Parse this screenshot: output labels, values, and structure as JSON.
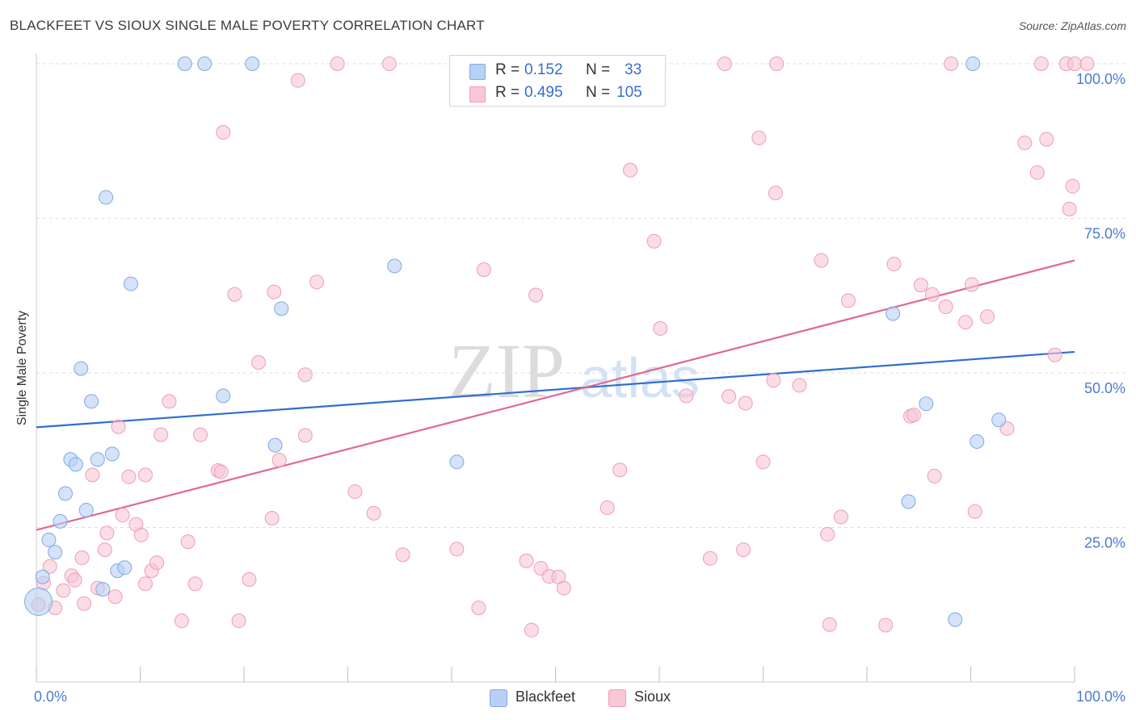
{
  "header": {
    "title": "BLACKFEET VS SIOUX SINGLE MALE POVERTY CORRELATION CHART",
    "source": "Source: ZipAtlas.com"
  },
  "watermark": {
    "zip": "ZIP",
    "atlas": "atlas"
  },
  "stats_box": {
    "rows": [
      {
        "r_label": "R =",
        "r_value": "0.152",
        "n_label": "N =",
        "n_value": "33",
        "color": "#b8d0f4"
      },
      {
        "r_label": "R =",
        "r_value": "0.495",
        "n_label": "N =",
        "n_value": "105",
        "color": "#f9c7d5"
      }
    ]
  },
  "legend": {
    "items": [
      "Blackfeet",
      "Sioux"
    ]
  },
  "chart_data": {
    "type": "scatter",
    "title": "BLACKFEET VS SIOUX SINGLE MALE POVERTY CORRELATION CHART",
    "xlabel": "",
    "ylabel": "Single Male Poverty",
    "xlim": [
      0,
      100
    ],
    "ylim": [
      0,
      100
    ],
    "x_tick_labels": [
      "0.0%",
      "100.0%"
    ],
    "y_tick_labels": [
      "25.0%",
      "50.0%",
      "75.0%",
      "100.0%"
    ],
    "y_ticks": [
      25,
      50,
      75,
      100
    ],
    "grid": true,
    "legend_position": "bottom-center",
    "series": [
      {
        "name": "Blackfeet",
        "color": "#7fa9e6",
        "fill": "#b8d0f4",
        "line_color": "#2f6ecf",
        "trend": [
          [
            0,
            41.2
          ],
          [
            100,
            53.4
          ]
        ],
        "points": [
          [
            0.2,
            13.0
          ],
          [
            0.6,
            17.0
          ],
          [
            1.2,
            23.0
          ],
          [
            1.8,
            21.0
          ],
          [
            2.3,
            26.0
          ],
          [
            2.8,
            30.5
          ],
          [
            3.3,
            36.0
          ],
          [
            3.8,
            35.2
          ],
          [
            4.3,
            50.7
          ],
          [
            4.8,
            27.8
          ],
          [
            5.3,
            45.4
          ],
          [
            5.9,
            36.0
          ],
          [
            6.4,
            15.0
          ],
          [
            6.7,
            78.4
          ],
          [
            7.3,
            36.9
          ],
          [
            7.8,
            18.0
          ],
          [
            8.5,
            18.5
          ],
          [
            9.1,
            64.4
          ],
          [
            14.3,
            100.0
          ],
          [
            16.2,
            100.0
          ],
          [
            18.0,
            46.3
          ],
          [
            20.8,
            100.0
          ],
          [
            23.0,
            38.3
          ],
          [
            23.6,
            60.4
          ],
          [
            34.5,
            67.3
          ],
          [
            40.5,
            35.6
          ],
          [
            82.5,
            59.6
          ],
          [
            84.0,
            29.2
          ],
          [
            85.7,
            45.0
          ],
          [
            88.5,
            10.1
          ],
          [
            90.2,
            100.0
          ],
          [
            90.6,
            38.9
          ],
          [
            92.7,
            42.4
          ]
        ]
      },
      {
        "name": "Sioux",
        "color": "#ee9db5",
        "fill": "#f9c7d5",
        "line_color": "#e0698f",
        "trend": [
          [
            0,
            24.6
          ],
          [
            100,
            68.2
          ]
        ],
        "points": [
          [
            0.2,
            12.5
          ],
          [
            0.7,
            16.0
          ],
          [
            1.3,
            18.7
          ],
          [
            1.8,
            12.0
          ],
          [
            2.6,
            14.8
          ],
          [
            3.4,
            17.2
          ],
          [
            3.7,
            16.5
          ],
          [
            4.4,
            20.1
          ],
          [
            4.6,
            12.7
          ],
          [
            5.4,
            33.5
          ],
          [
            5.9,
            15.2
          ],
          [
            6.6,
            21.4
          ],
          [
            6.8,
            24.1
          ],
          [
            7.6,
            13.8
          ],
          [
            7.9,
            41.3
          ],
          [
            8.3,
            27.0
          ],
          [
            8.9,
            33.2
          ],
          [
            9.6,
            25.5
          ],
          [
            10.1,
            23.8
          ],
          [
            10.5,
            33.5
          ],
          [
            10.5,
            15.9
          ],
          [
            11.1,
            18.0
          ],
          [
            11.6,
            19.3
          ],
          [
            12.0,
            40.0
          ],
          [
            12.8,
            45.4
          ],
          [
            14.0,
            9.9
          ],
          [
            14.6,
            22.7
          ],
          [
            15.3,
            15.9
          ],
          [
            15.8,
            40.0
          ],
          [
            17.5,
            34.2
          ],
          [
            17.8,
            34.0
          ],
          [
            18.0,
            88.9
          ],
          [
            19.1,
            62.7
          ],
          [
            19.5,
            9.9
          ],
          [
            20.5,
            16.6
          ],
          [
            21.4,
            51.7
          ],
          [
            22.7,
            26.5
          ],
          [
            22.9,
            63.1
          ],
          [
            23.4,
            35.9
          ],
          [
            25.2,
            97.3
          ],
          [
            25.9,
            49.7
          ],
          [
            25.9,
            39.9
          ],
          [
            27.0,
            64.7
          ],
          [
            29.0,
            100.0
          ],
          [
            30.7,
            30.8
          ],
          [
            32.5,
            27.3
          ],
          [
            34.0,
            100.0
          ],
          [
            35.3,
            20.6
          ],
          [
            40.5,
            21.5
          ],
          [
            42.6,
            12.0
          ],
          [
            43.1,
            66.7
          ],
          [
            47.2,
            19.6
          ],
          [
            47.7,
            8.4
          ],
          [
            48.1,
            62.6
          ],
          [
            48.6,
            18.4
          ],
          [
            49.4,
            17.1
          ],
          [
            50.3,
            17.0
          ],
          [
            50.8,
            15.2
          ],
          [
            52.0,
            100.0
          ],
          [
            55.0,
            28.2
          ],
          [
            56.2,
            34.3
          ],
          [
            57.2,
            82.8
          ],
          [
            59.5,
            71.3
          ],
          [
            60.1,
            57.2
          ],
          [
            62.6,
            46.3
          ],
          [
            64.9,
            20.0
          ],
          [
            66.3,
            100.0
          ],
          [
            66.7,
            46.2
          ],
          [
            68.1,
            21.4
          ],
          [
            68.3,
            45.1
          ],
          [
            69.6,
            88.0
          ],
          [
            70.0,
            35.6
          ],
          [
            71.0,
            48.8
          ],
          [
            71.2,
            79.1
          ],
          [
            71.3,
            100.0
          ],
          [
            73.5,
            48.0
          ],
          [
            75.6,
            68.2
          ],
          [
            76.2,
            23.9
          ],
          [
            76.4,
            9.3
          ],
          [
            77.5,
            26.7
          ],
          [
            78.2,
            61.7
          ],
          [
            81.8,
            9.2
          ],
          [
            82.6,
            67.6
          ],
          [
            84.2,
            43.0
          ],
          [
            84.5,
            43.2
          ],
          [
            85.2,
            64.2
          ],
          [
            86.3,
            62.7
          ],
          [
            86.5,
            33.3
          ],
          [
            87.6,
            60.7
          ],
          [
            88.1,
            100.0
          ],
          [
            89.5,
            58.2
          ],
          [
            90.1,
            64.3
          ],
          [
            90.4,
            27.6
          ],
          [
            91.6,
            59.1
          ],
          [
            93.5,
            41.0
          ],
          [
            95.2,
            87.2
          ],
          [
            96.4,
            82.4
          ],
          [
            96.8,
            100.0
          ],
          [
            97.3,
            87.8
          ],
          [
            98.1,
            52.9
          ],
          [
            99.2,
            100.0
          ],
          [
            99.5,
            76.5
          ],
          [
            99.8,
            80.2
          ],
          [
            100.0,
            100.0
          ],
          [
            101.2,
            100.0
          ]
        ]
      }
    ]
  }
}
